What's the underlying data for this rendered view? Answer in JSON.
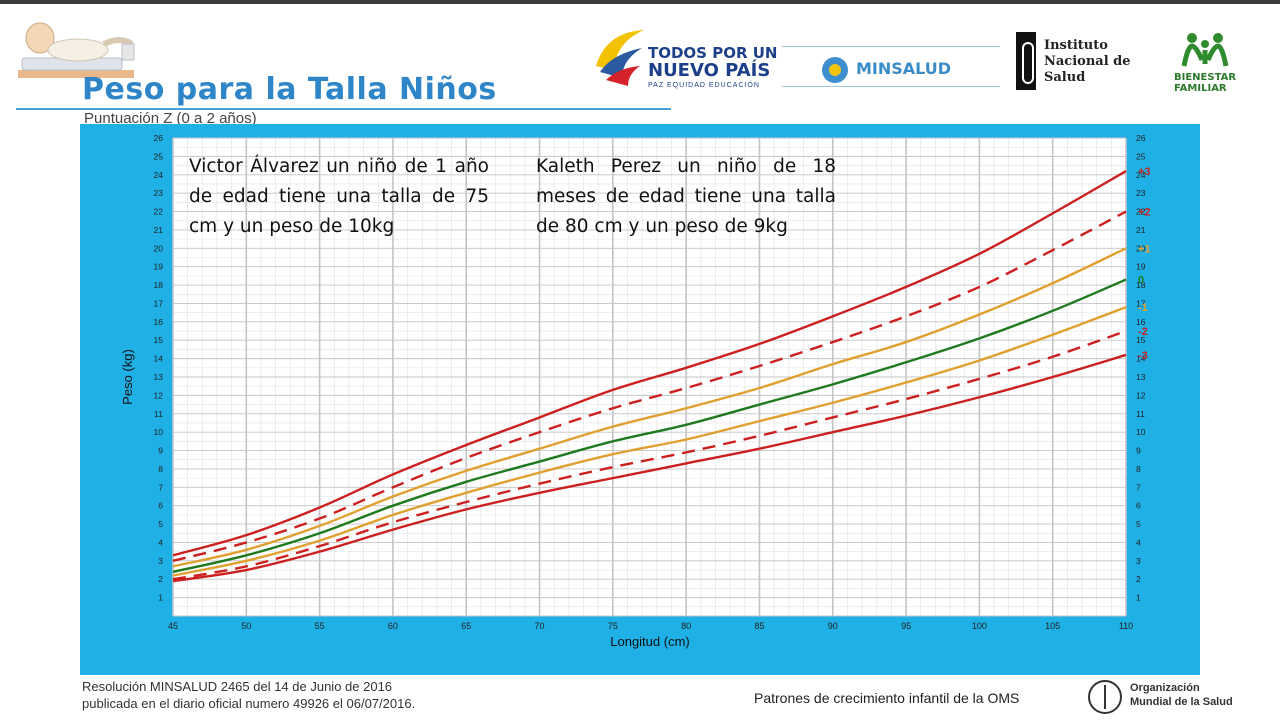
{
  "header": {
    "title": "Peso para la Talla Niños",
    "subtitle": "Puntuación Z (0 a 2 años)"
  },
  "logos": {
    "todos_line1": "TODOS POR UN",
    "todos_line2": "NUEVO PAÍS",
    "todos_line3": "PAZ  EQUIDAD  EDUCACIÓN",
    "minsalud": "MINSALUD",
    "ins_line1": "Instituto",
    "ins_line2": "Nacional de",
    "ins_line3": "Salud",
    "bienestar_line1": "BIENESTAR",
    "bienestar_line2": "FAMILIAR",
    "oms_line1": "Organización",
    "oms_line2": "Mundial de la Salud"
  },
  "annotations": [
    "Victor Álvarez un niño de 1 año de edad tiene una talla de 75 cm y un peso de 10kg",
    "Kaleth Perez un niño de 18 meses de edad tiene una talla de 80 cm y un peso de 9kg"
  ],
  "footer": {
    "line1": "Resolución MINSALUD 2465 del 14 de Junio de 2016",
    "line2": "publicada en el diario oficial numero 49926 el 06/07/2016.",
    "right": "Patrones de crecimiento infantil de la OMS"
  },
  "colors": {
    "frame": "#1fb0e6",
    "grid_major": "#c4c4c4",
    "grid_minor": "#e4e4e4",
    "red": "#cc1f1f",
    "gold": "#e0a030",
    "green": "#1f7a1f",
    "title_blue": "#2e86c8"
  },
  "chart_data": {
    "type": "line",
    "xlabel": "Longitud (cm)",
    "ylabel": "Peso (kg)",
    "xlim": [
      45,
      110
    ],
    "ylim": [
      0,
      26
    ],
    "x_ticks": [
      45,
      50,
      55,
      60,
      65,
      70,
      75,
      80,
      85,
      90,
      95,
      100,
      105,
      110
    ],
    "y_ticks": [
      1,
      2,
      3,
      4,
      5,
      6,
      7,
      8,
      9,
      10,
      11,
      12,
      13,
      14,
      15,
      16,
      17,
      18,
      19,
      20,
      21,
      22,
      23,
      24,
      25,
      26
    ],
    "grid": true,
    "x": [
      45,
      50,
      55,
      60,
      65,
      70,
      75,
      80,
      85,
      90,
      95,
      100,
      105,
      110
    ],
    "series": [
      {
        "name": "+3",
        "style": "solid",
        "color": "#cc1f1f",
        "values": [
          3.3,
          4.4,
          5.9,
          7.7,
          9.3,
          10.8,
          12.3,
          13.5,
          14.8,
          16.3,
          17.9,
          19.7,
          21.9,
          24.2
        ]
      },
      {
        "name": "+2",
        "style": "dashed",
        "color": "#cc1f1f",
        "values": [
          3.0,
          4.0,
          5.3,
          7.0,
          8.6,
          10.0,
          11.3,
          12.4,
          13.6,
          14.9,
          16.3,
          17.9,
          19.9,
          22.0
        ]
      },
      {
        "name": "+1",
        "style": "solid",
        "color": "#e0a030",
        "values": [
          2.7,
          3.6,
          4.9,
          6.5,
          7.9,
          9.1,
          10.3,
          11.3,
          12.4,
          13.7,
          14.9,
          16.4,
          18.1,
          20.0
        ]
      },
      {
        "name": "0",
        "style": "solid",
        "color": "#1f7a1f",
        "values": [
          2.4,
          3.3,
          4.5,
          6.0,
          7.3,
          8.4,
          9.5,
          10.4,
          11.5,
          12.6,
          13.8,
          15.1,
          16.6,
          18.3
        ]
      },
      {
        "name": "-1",
        "style": "solid",
        "color": "#e0a030",
        "values": [
          2.2,
          3.0,
          4.1,
          5.5,
          6.7,
          7.8,
          8.8,
          9.6,
          10.6,
          11.6,
          12.7,
          13.9,
          15.3,
          16.8
        ]
      },
      {
        "name": "-2",
        "style": "dashed",
        "color": "#cc1f1f",
        "values": [
          2.0,
          2.7,
          3.8,
          5.1,
          6.2,
          7.2,
          8.1,
          8.9,
          9.8,
          10.8,
          11.8,
          12.9,
          14.1,
          15.5
        ]
      },
      {
        "name": "-3",
        "style": "solid",
        "color": "#cc1f1f",
        "values": [
          1.9,
          2.5,
          3.5,
          4.7,
          5.8,
          6.7,
          7.5,
          8.3,
          9.1,
          10.0,
          10.9,
          11.9,
          13.0,
          14.2
        ]
      }
    ]
  }
}
